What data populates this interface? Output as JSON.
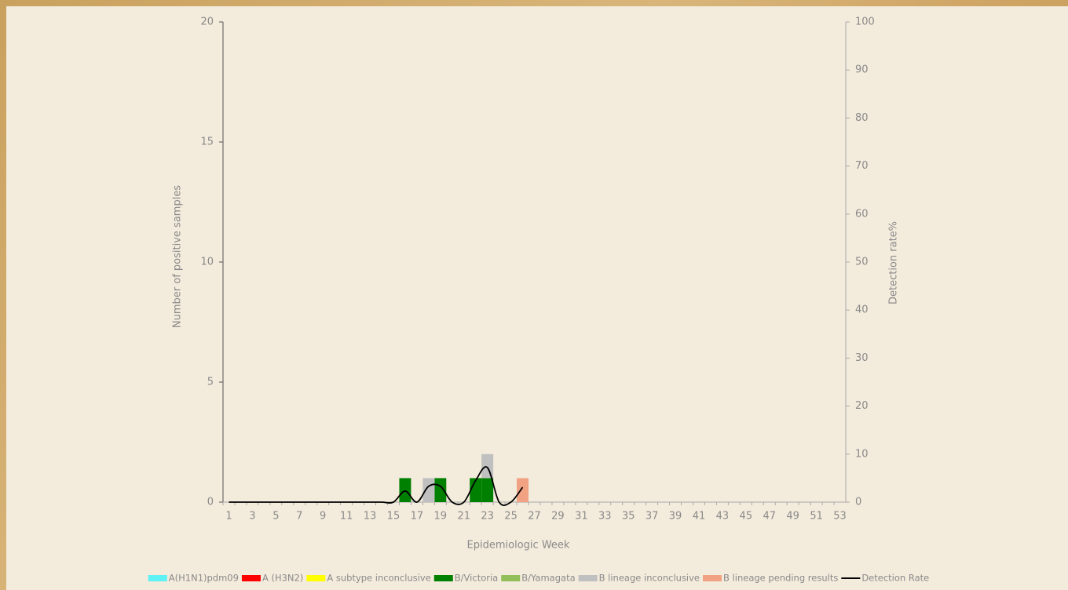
{
  "chart_data": {
    "type": "bar",
    "stacked": true,
    "x_label": "Epidemiologic Week",
    "y_label": "Number of positive samples",
    "y2_label": "Detection rate%",
    "categories": [
      1,
      null,
      3,
      null,
      5,
      null,
      7,
      null,
      9,
      null,
      11,
      null,
      13,
      null,
      15,
      null,
      17,
      null,
      19,
      null,
      21,
      null,
      23,
      null,
      25,
      null,
      27,
      null,
      29,
      null,
      31,
      null,
      33,
      null,
      35,
      null,
      37,
      null,
      39,
      null,
      41,
      null,
      43,
      null,
      45,
      null,
      47,
      null,
      49,
      null,
      51,
      null,
      53
    ],
    "ylim": [
      0,
      20
    ],
    "yticks": [
      0,
      5,
      10,
      15,
      20
    ],
    "y2lim": [
      0,
      100
    ],
    "y2ticks": [
      0,
      10,
      20,
      30,
      40,
      50,
      60,
      70,
      80,
      90,
      100
    ],
    "series": [
      {
        "name": "A(H1N1)pdm09",
        "color": "#5ef2f7",
        "values": [
          0,
          0,
          0,
          0,
          0,
          0,
          0,
          0,
          0,
          0,
          0,
          0,
          0,
          0,
          0,
          0,
          0,
          0,
          0,
          0,
          0,
          0,
          0,
          0,
          0,
          0,
          0,
          0,
          0,
          0,
          0,
          0,
          0,
          0,
          0,
          0,
          0,
          0,
          0,
          0,
          0,
          0,
          0,
          0,
          0,
          0,
          0,
          0,
          0,
          0,
          0,
          0,
          0
        ]
      },
      {
        "name": "A (H3N2)",
        "color": "#ff0000",
        "values": [
          0,
          0,
          0,
          0,
          0,
          0,
          0,
          0,
          0,
          0,
          0,
          0,
          0,
          0,
          0,
          0,
          0,
          0,
          0,
          0,
          0,
          0,
          0,
          0,
          0,
          0,
          0,
          0,
          0,
          0,
          0,
          0,
          0,
          0,
          0,
          0,
          0,
          0,
          0,
          0,
          0,
          0,
          0,
          0,
          0,
          0,
          0,
          0,
          0,
          0,
          0,
          0,
          0
        ]
      },
      {
        "name": "A subtype inconclusive",
        "color": "#ffff00",
        "values": [
          0,
          0,
          0,
          0,
          0,
          0,
          0,
          0,
          0,
          0,
          0,
          0,
          0,
          0,
          0,
          0,
          0,
          0,
          0,
          0,
          0,
          0,
          0,
          0,
          0,
          0,
          0,
          0,
          0,
          0,
          0,
          0,
          0,
          0,
          0,
          0,
          0,
          0,
          0,
          0,
          0,
          0,
          0,
          0,
          0,
          0,
          0,
          0,
          0,
          0,
          0,
          0,
          0
        ]
      },
      {
        "name": "B/Victoria",
        "color": "#008000",
        "values": [
          0,
          0,
          0,
          0,
          0,
          0,
          0,
          0,
          0,
          0,
          0,
          0,
          0,
          0,
          0,
          1,
          0,
          0,
          1,
          0,
          0,
          1,
          1,
          0,
          0,
          0,
          0,
          0,
          0,
          0,
          0,
          0,
          0,
          0,
          0,
          0,
          0,
          0,
          0,
          0,
          0,
          0,
          0,
          0,
          0,
          0,
          0,
          0,
          0,
          0,
          0,
          0,
          0
        ]
      },
      {
        "name": "B/Yamagata",
        "color": "#92bf5a",
        "values": [
          0,
          0,
          0,
          0,
          0,
          0,
          0,
          0,
          0,
          0,
          0,
          0,
          0,
          0,
          0,
          0,
          0,
          0,
          0,
          0,
          0,
          0,
          0,
          0,
          0,
          0,
          0,
          0,
          0,
          0,
          0,
          0,
          0,
          0,
          0,
          0,
          0,
          0,
          0,
          0,
          0,
          0,
          0,
          0,
          0,
          0,
          0,
          0,
          0,
          0,
          0,
          0,
          0
        ]
      },
      {
        "name": "B lineage inconclusive",
        "color": "#c0c0c0",
        "values": [
          0,
          0,
          0,
          0,
          0,
          0,
          0,
          0,
          0,
          0,
          0,
          0,
          0,
          0,
          0,
          0,
          0,
          1,
          0,
          0,
          0,
          0,
          1,
          0,
          0,
          0,
          0,
          0,
          0,
          0,
          0,
          0,
          0,
          0,
          0,
          0,
          0,
          0,
          0,
          0,
          0,
          0,
          0,
          0,
          0,
          0,
          0,
          0,
          0,
          0,
          0,
          0,
          0
        ]
      },
      {
        "name": "B lineage pending results",
        "color": "#f0a283",
        "values": [
          0,
          0,
          0,
          0,
          0,
          0,
          0,
          0,
          0,
          0,
          0,
          0,
          0,
          0,
          0,
          0,
          0,
          0,
          0,
          0,
          0,
          0,
          0,
          0,
          0,
          1,
          0,
          0,
          0,
          0,
          0,
          0,
          0,
          0,
          0,
          0,
          0,
          0,
          0,
          0,
          0,
          0,
          0,
          0,
          0,
          0,
          0,
          0,
          0,
          0,
          0,
          0,
          0
        ]
      },
      {
        "name": "Detection Rate",
        "color": "#000000",
        "type": "line",
        "axis": "y2",
        "values": [
          0,
          0,
          0,
          0,
          0,
          0,
          0,
          0,
          0,
          0,
          0,
          0,
          0,
          0,
          0,
          2.3,
          0,
          3.3,
          3.3,
          0,
          0,
          4.5,
          7.2,
          0,
          0,
          3.1,
          null,
          null,
          null,
          null,
          null,
          null,
          null,
          null,
          null,
          null,
          null,
          null,
          null,
          null,
          null,
          null,
          null,
          null,
          null,
          null,
          null,
          null,
          null,
          null,
          null,
          null,
          null
        ]
      }
    ]
  }
}
